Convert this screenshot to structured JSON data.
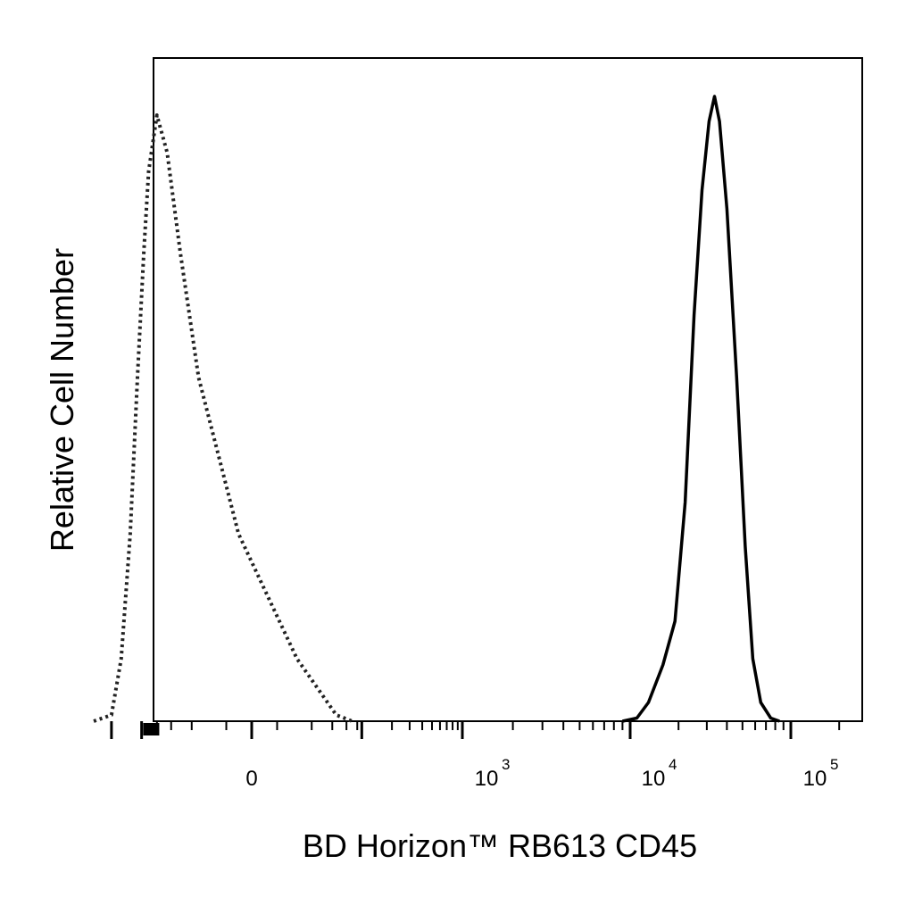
{
  "chart_data": {
    "type": "line",
    "title": "",
    "xlabel": "BD Horizon™ RB613 CD45",
    "ylabel": "Relative Cell Number",
    "x_scale": "biexponential",
    "x_tick_labels": [
      {
        "base": "0",
        "exp": ""
      },
      {
        "base": "10",
        "exp": "3"
      },
      {
        "base": "10",
        "exp": "4"
      },
      {
        "base": "10",
        "exp": "5"
      }
    ],
    "xlim": [
      -300,
      150000
    ],
    "ylim": [
      0,
      100
    ],
    "grid": false,
    "legend": "none",
    "series": [
      {
        "style": "dotted",
        "color": "#222222",
        "points": [
          [
            -300,
            0
          ],
          [
            -200,
            1
          ],
          [
            -160,
            10
          ],
          [
            -130,
            30
          ],
          [
            -110,
            55
          ],
          [
            -95,
            75
          ],
          [
            -85,
            88
          ],
          [
            -70,
            97
          ],
          [
            -55,
            91
          ],
          [
            -40,
            75
          ],
          [
            -25,
            55
          ],
          [
            -5,
            30
          ],
          [
            20,
            10
          ],
          [
            55,
            1
          ],
          [
            80,
            0
          ]
        ]
      },
      {
        "style": "solid",
        "color": "#000000",
        "points": [
          [
            9000,
            0
          ],
          [
            11000,
            0.5
          ],
          [
            13000,
            3
          ],
          [
            16000,
            9
          ],
          [
            19000,
            16
          ],
          [
            22000,
            35
          ],
          [
            25000,
            65
          ],
          [
            28000,
            85
          ],
          [
            31000,
            96
          ],
          [
            33500,
            100
          ],
          [
            36000,
            96
          ],
          [
            40000,
            82
          ],
          [
            46000,
            55
          ],
          [
            52000,
            28
          ],
          [
            58000,
            10
          ],
          [
            65000,
            3
          ],
          [
            75000,
            0.5
          ],
          [
            85000,
            0
          ]
        ]
      }
    ]
  }
}
